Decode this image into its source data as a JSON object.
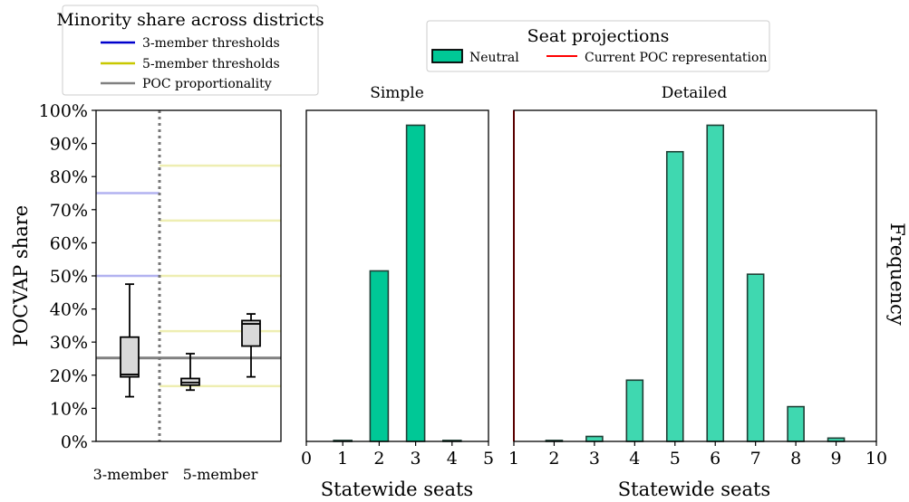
{
  "legends": {
    "minority": {
      "title": "Minority share across districts",
      "items": [
        {
          "label": "3-member thresholds",
          "color": "#0000cc"
        },
        {
          "label": "5-member thresholds",
          "color": "#c8c800"
        },
        {
          "label": "POC proportionality",
          "color": "#808080"
        }
      ]
    },
    "seats": {
      "title": "Seat projections",
      "items": [
        {
          "label": "Neutral",
          "color": "#00c896"
        },
        {
          "label": "Current POC representation",
          "color": "#ff0000"
        }
      ]
    }
  },
  "chart_data": [
    {
      "type": "box",
      "panel": "left",
      "ylabel": "POCVAP share",
      "ylim": [
        0,
        100
      ],
      "yticks": [
        "0%",
        "10%",
        "20%",
        "30%",
        "40%",
        "50%",
        "60%",
        "70%",
        "80%",
        "90%",
        "100%"
      ],
      "categories": [
        "3-member",
        "5-member"
      ],
      "groups": [
        {
          "name": "3-member",
          "boxes": [
            {
              "whisker_low": 13.5,
              "q1": 19.5,
              "median": 20.2,
              "q3": 31.5,
              "whisker_high": 47.5
            }
          ]
        },
        {
          "name": "5-member",
          "boxes": [
            {
              "whisker_low": 15.5,
              "q1": 17.0,
              "median": 17.8,
              "q3": 19.0,
              "whisker_high": 26.5
            },
            {
              "whisker_low": 19.5,
              "q1": 28.8,
              "median": 35.5,
              "q3": 36.5,
              "whisker_high": 38.5
            }
          ]
        }
      ],
      "thresholds_3_member": [
        50,
        75
      ],
      "thresholds_5_member": [
        16.7,
        33.3,
        50,
        66.7,
        83.3
      ],
      "poc_proportionality": 25.2,
      "grid": false
    },
    {
      "type": "bar",
      "title": "Simple",
      "xlabel": "Statewide seats",
      "x": [
        1,
        2,
        3,
        4
      ],
      "values": [
        0.3,
        51.5,
        95.5,
        0.3
      ],
      "xlim": [
        0,
        5
      ],
      "xticks": [
        "0",
        "1",
        "2",
        "3",
        "4",
        "5"
      ],
      "ylim": [
        0,
        100
      ],
      "series": [
        {
          "name": "Neutral",
          "color": "#00c896"
        }
      ]
    },
    {
      "type": "bar",
      "title": "Detailed",
      "xlabel": "Statewide seats",
      "ylabel_right": "Frequency",
      "x": [
        2,
        3,
        4,
        5,
        6,
        7,
        8,
        9
      ],
      "values": [
        0.3,
        1.5,
        18.5,
        87.5,
        95.5,
        50.5,
        10.5,
        1.0
      ],
      "xlim": [
        1,
        10
      ],
      "xticks": [
        "1",
        "2",
        "3",
        "4",
        "5",
        "6",
        "7",
        "8",
        "9",
        "10"
      ],
      "ylim": [
        0,
        100
      ],
      "current_poc_representation": 1,
      "series": [
        {
          "name": "Neutral",
          "color": "#3fd8b0"
        }
      ]
    }
  ]
}
